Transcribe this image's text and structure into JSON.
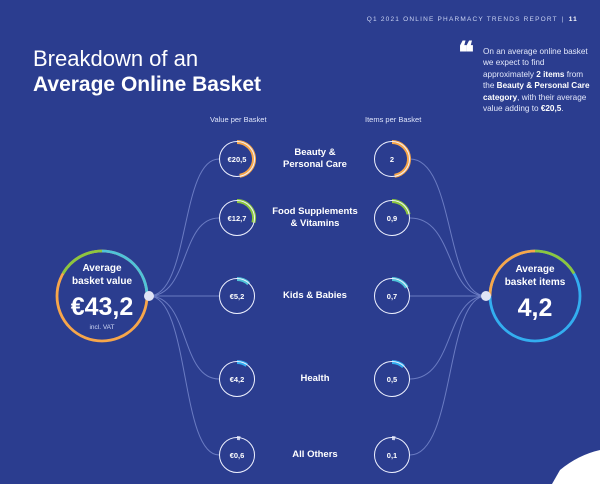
{
  "header": {
    "report": "Q1 2021 ONLINE PHARMACY TRENDS REPORT",
    "separator": "|",
    "page": "11"
  },
  "title": {
    "line1": "Breakdown of an",
    "line2": "Average Online Basket"
  },
  "quote": {
    "mark": "❝",
    "p1": "On an average online basket we expect to find approximately ",
    "b1": "2 items",
    "p2": " from the ",
    "b2": "Beauty & Personal Care category",
    "p3": ", with their average value adding to ",
    "b3": "€20,5",
    "p4": "."
  },
  "columns": {
    "value": "Value per Basket",
    "items": "Items per Basket"
  },
  "left_total": {
    "label_line1": "Average",
    "label_line2": "basket value",
    "value": "€43,2",
    "note": "incl. VAT"
  },
  "right_total": {
    "label_line1": "Average",
    "label_line2": "basket items",
    "value": "4,2"
  },
  "categories": [
    {
      "line1": "Beauty &",
      "line2": "Personal Care",
      "value": "€20,5",
      "items": "2",
      "color": "#f7a64a",
      "value_fraction": 0.475,
      "items_fraction": 0.476
    },
    {
      "line1": "Food Supplements",
      "line2": "& Vitamins",
      "value": "€12,7",
      "items": "0,9",
      "color": "#8cc63f",
      "value_fraction": 0.294,
      "items_fraction": 0.214
    },
    {
      "line1": "Kids & Babies",
      "line2": "",
      "value": "€5,2",
      "items": "0,7",
      "color": "#4fc3d9",
      "value_fraction": 0.12,
      "items_fraction": 0.167
    },
    {
      "line1": "Health",
      "line2": "",
      "value": "€4,2",
      "items": "0,5",
      "color": "#33aef0",
      "value_fraction": 0.097,
      "items_fraction": 0.119
    },
    {
      "line1": "All Others",
      "line2": "",
      "value": "€0,6",
      "items": "0,1",
      "color": "#c3c9e6",
      "value_fraction": 0.014,
      "items_fraction": 0.024
    }
  ],
  "colors": {
    "background": "#2b3d8f",
    "orange": "#f7a64a",
    "green": "#8cc63f",
    "teal": "#4fc3d9",
    "blue": "#33aef0",
    "light": "#c3c9e6"
  }
}
